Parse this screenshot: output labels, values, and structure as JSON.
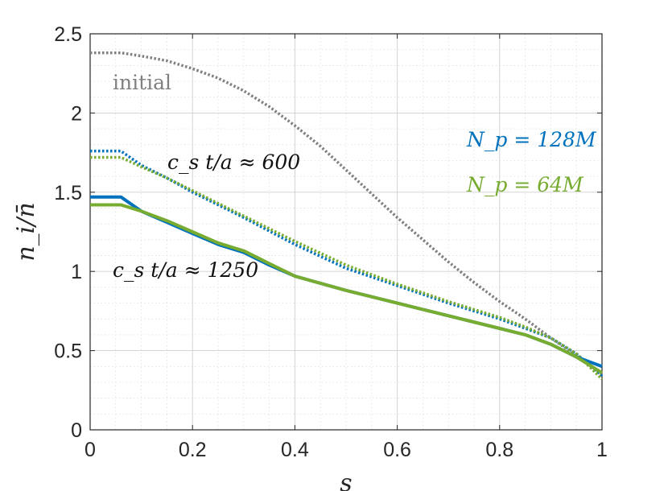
{
  "chart_data": {
    "type": "line",
    "xlabel": "s",
    "ylabel": "n_i/n̄",
    "xlim": [
      0,
      1
    ],
    "ylim": [
      0,
      2.5
    ],
    "x_ticks": [
      0,
      0.2,
      0.4,
      0.6,
      0.8,
      1
    ],
    "x_tick_labels": [
      "0",
      "0.2",
      "0.4",
      "0.6",
      "0.8",
      "1"
    ],
    "y_ticks": [
      0,
      0.5,
      1,
      1.5,
      2,
      2.5
    ],
    "y_tick_labels": [
      "0",
      "0.5",
      "1",
      "1.5",
      "2",
      "2.5"
    ],
    "grid": true,
    "minor_grid": true,
    "colors": {
      "blue": "#0072bd",
      "green": "#77ac30",
      "gray": "#808080"
    },
    "annotations": {
      "initial": "initial",
      "t600": "c_s t/a ≈ 600",
      "t1250": "c_s t/a ≈ 1250",
      "np128": "N_p = 128M",
      "np64": "N_p = 64M"
    },
    "series": [
      {
        "color": "gray",
        "style": "dotted",
        "x": [
          0,
          0.06,
          0.1,
          0.15,
          0.2,
          0.25,
          0.3,
          0.35,
          0.4,
          0.45,
          0.5,
          0.55,
          0.6,
          0.65,
          0.7,
          0.75,
          0.8,
          0.85,
          0.9,
          0.95,
          1.0
        ],
        "y": [
          2.38,
          2.38,
          2.36,
          2.33,
          2.28,
          2.22,
          2.14,
          2.04,
          1.92,
          1.79,
          1.64,
          1.49,
          1.34,
          1.2,
          1.06,
          0.93,
          0.81,
          0.7,
          0.58,
          0.47,
          0.35
        ]
      },
      {
        "color": "blue",
        "style": "dotted",
        "x": [
          0,
          0.06,
          0.1,
          0.15,
          0.2,
          0.25,
          0.3,
          0.4,
          0.5,
          0.6,
          0.7,
          0.8,
          0.85,
          0.9,
          0.95,
          1.0
        ],
        "y": [
          1.76,
          1.76,
          1.67,
          1.59,
          1.5,
          1.42,
          1.34,
          1.17,
          1.02,
          0.91,
          0.8,
          0.7,
          0.64,
          0.58,
          0.48,
          0.34
        ]
      },
      {
        "color": "green",
        "style": "dotted",
        "x": [
          0,
          0.06,
          0.1,
          0.15,
          0.2,
          0.25,
          0.3,
          0.4,
          0.5,
          0.6,
          0.7,
          0.8,
          0.85,
          0.9,
          0.95,
          1.0
        ],
        "y": [
          1.72,
          1.72,
          1.66,
          1.59,
          1.51,
          1.43,
          1.35,
          1.19,
          1.04,
          0.92,
          0.81,
          0.71,
          0.65,
          0.58,
          0.48,
          0.32
        ]
      },
      {
        "color": "blue",
        "style": "solid",
        "x": [
          0,
          0.06,
          0.1,
          0.15,
          0.2,
          0.25,
          0.3,
          0.35,
          0.4,
          0.5,
          0.6,
          0.7,
          0.8,
          0.85,
          0.9,
          0.95,
          1.0
        ],
        "y": [
          1.47,
          1.47,
          1.38,
          1.31,
          1.24,
          1.17,
          1.12,
          1.04,
          0.97,
          0.88,
          0.8,
          0.72,
          0.64,
          0.6,
          0.54,
          0.46,
          0.4
        ]
      },
      {
        "color": "green",
        "style": "solid",
        "x": [
          0,
          0.06,
          0.1,
          0.15,
          0.2,
          0.25,
          0.3,
          0.35,
          0.4,
          0.5,
          0.6,
          0.7,
          0.8,
          0.85,
          0.9,
          0.95,
          1.0
        ],
        "y": [
          1.42,
          1.42,
          1.38,
          1.32,
          1.25,
          1.18,
          1.13,
          1.05,
          0.97,
          0.88,
          0.8,
          0.72,
          0.64,
          0.6,
          0.54,
          0.46,
          0.36
        ]
      }
    ]
  }
}
